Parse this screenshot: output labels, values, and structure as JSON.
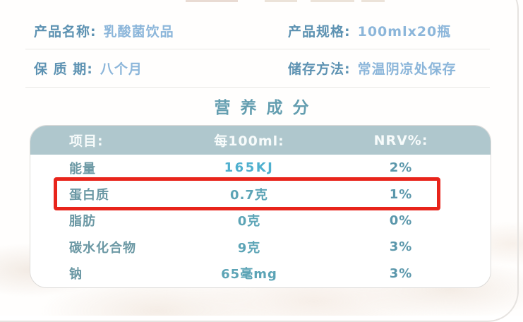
{
  "info": {
    "rows": [
      {
        "left": {
          "label": "产品名称:",
          "value": "乳酸菌饮品"
        },
        "right": {
          "label": "产品规格:",
          "value": "100mlx20瓶"
        }
      },
      {
        "left": {
          "label": "保 质 期:",
          "value": "八个月"
        },
        "right": {
          "label": "储存方法:",
          "value": "常温阴凉处保存"
        }
      }
    ]
  },
  "nutrition": {
    "title": "营养成分",
    "table": {
      "headers": [
        "项目:",
        "每100ml:",
        "NRV%:"
      ],
      "rows": [
        {
          "item": "能量",
          "per100ml": "165KJ",
          "nrv": "2%",
          "highlighted": false,
          "value_emphasis": true
        },
        {
          "item": "蛋白质",
          "per100ml": "0.7克",
          "nrv": "1%",
          "highlighted": true,
          "value_emphasis": false
        },
        {
          "item": "脂肪",
          "per100ml": "0克",
          "nrv": "0%",
          "highlighted": false,
          "value_emphasis": false
        },
        {
          "item": "碳水化合物",
          "per100ml": "9克",
          "nrv": "3%",
          "highlighted": false,
          "value_emphasis": false
        },
        {
          "item": "钠",
          "per100ml": "65毫mg",
          "nrv": "3%",
          "highlighted": false,
          "value_emphasis": false
        }
      ]
    }
  },
  "colors": {
    "label_blue": "#5d92b2",
    "value_blue": "#8cb6da",
    "title_teal": "#649eb0",
    "table_header_bg": "#afc7cd",
    "table_header_text": "#f7fbfb",
    "table_item_teal": "#6b98a4",
    "table_value_teal": "#5ca4b6",
    "energy_value_cyan": "#4fb0cf",
    "highlight_red": "#e8241b",
    "divider_gray": "#e9e7e5",
    "card_border_gray": "#e6e3e0",
    "texture_cream": "#f3eae2"
  }
}
